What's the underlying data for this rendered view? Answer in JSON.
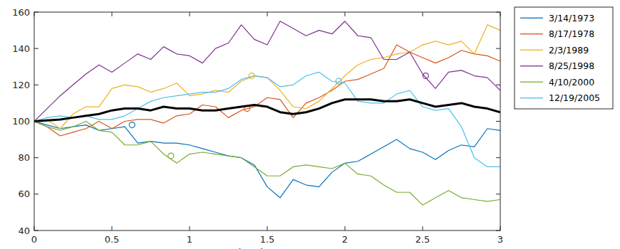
{
  "chart_data": {
    "type": "line",
    "x_label": "time in years",
    "x": [
      0,
      0.083,
      0.167,
      0.25,
      0.333,
      0.417,
      0.5,
      0.583,
      0.667,
      0.75,
      0.833,
      0.917,
      1,
      1.083,
      1.167,
      1.25,
      1.333,
      1.417,
      1.5,
      1.583,
      1.667,
      1.75,
      1.833,
      1.917,
      2,
      2.083,
      2.167,
      2.25,
      2.333,
      2.417,
      2.5,
      2.583,
      2.667,
      2.75,
      2.833,
      2.917,
      3
    ],
    "xlim": [
      0,
      3
    ],
    "xticks": [
      0,
      0.5,
      1,
      1.5,
      2,
      2.5,
      3
    ],
    "ylim": [
      40,
      160
    ],
    "yticks": [
      40,
      60,
      80,
      100,
      120,
      140,
      160
    ],
    "grid": false,
    "legend": "right",
    "series": [
      {
        "name": "3/14/1973",
        "color": "#0072bd",
        "highlight_x": 0.63,
        "highlight_y": 98,
        "values": [
          100,
          98,
          96,
          97,
          98,
          95,
          96,
          97,
          88,
          89,
          88,
          88,
          87,
          85,
          83,
          81,
          80,
          76,
          64,
          58,
          68,
          65,
          64,
          72,
          77,
          78,
          82,
          86,
          90,
          85,
          83,
          79,
          84,
          87,
          86,
          96,
          95
        ]
      },
      {
        "name": "8/17/1978",
        "color": "#d95319",
        "highlight_x": 1.37,
        "highlight_y": 107,
        "values": [
          100,
          97,
          92,
          94,
          96,
          100,
          96,
          100,
          101,
          101,
          99,
          103,
          104,
          109,
          108,
          102,
          106,
          108,
          113,
          112,
          102,
          110,
          113,
          117,
          122,
          123,
          126,
          129,
          142,
          138,
          135,
          132,
          135,
          139,
          137,
          136,
          133
        ]
      },
      {
        "name": "2/3/1989",
        "color": "#edb120",
        "highlight_x": 1.4,
        "highlight_y": 125,
        "values": [
          100,
          101,
          96,
          104,
          108,
          108,
          118,
          120,
          119,
          116,
          118,
          121,
          114,
          115,
          117,
          116,
          122,
          125,
          124,
          117,
          108,
          107,
          111,
          118,
          125,
          131,
          134,
          135,
          137,
          138,
          142,
          144,
          142,
          144,
          137,
          153,
          150
        ]
      },
      {
        "name": "8/25/1998",
        "color": "#7e2f8e",
        "highlight_x": 2.52,
        "highlight_y": 125,
        "values": [
          100,
          107,
          114,
          120,
          126,
          131,
          127,
          132,
          137,
          134,
          141,
          137,
          136,
          132,
          140,
          143,
          153,
          145,
          142,
          155,
          151,
          147,
          150,
          148,
          155,
          147,
          146,
          134,
          134,
          138,
          126,
          118,
          127,
          128,
          125,
          124,
          117
        ]
      },
      {
        "name": "4/10/2000",
        "color": "#77ac30",
        "highlight_x": 0.88,
        "highlight_y": 81,
        "values": [
          100,
          97,
          95,
          97,
          100,
          95,
          94,
          87,
          87,
          89,
          82,
          77,
          82,
          83,
          82,
          81,
          80,
          75,
          70,
          70,
          75,
          76,
          75,
          74,
          77,
          71,
          70,
          65,
          61,
          61,
          54,
          58,
          62,
          58,
          57,
          56,
          57
        ]
      },
      {
        "name": "12/19/2005",
        "color": "#4dbeee",
        "highlight_x": 1.96,
        "highlight_y": 122,
        "values": [
          100,
          102,
          103,
          102,
          103,
          101,
          101,
          103,
          107,
          111,
          113,
          114,
          115,
          116,
          116,
          118,
          123,
          125,
          124,
          119,
          120,
          125,
          127,
          122,
          121,
          111,
          110,
          110,
          115,
          117,
          108,
          106,
          107,
          97,
          80,
          75,
          75
        ]
      },
      {
        "color": "#000000",
        "values": [
          100,
          100.5,
          101,
          102,
          103,
          104,
          106,
          107,
          107,
          106,
          108,
          107,
          107,
          106,
          106,
          107,
          108,
          109,
          108,
          105,
          104,
          105,
          107,
          110,
          112,
          112,
          112,
          111,
          111,
          112,
          110,
          108,
          109,
          110,
          108,
          107,
          105
        ]
      }
    ]
  }
}
